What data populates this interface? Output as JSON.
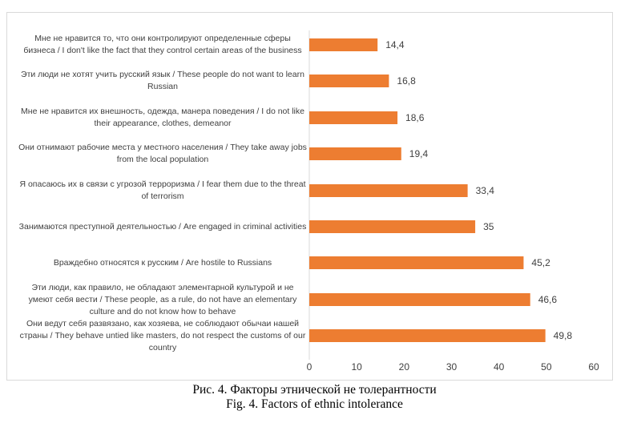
{
  "chart_data": {
    "type": "bar",
    "orientation": "horizontal",
    "categories": [
      "Мне не нравится то, что они контролируют определенные сферы бизнеса / I don't like the fact that they control certain areas of the business",
      "Эти люди не хотят учить русский язык / These people do not want to learn Russian",
      "Мне не нравится их внешность, одежда, манера поведения / I do not like their appearance, clothes, demeanor",
      "Они отнимают рабочие места у местного населения / They take away jobs from the local population",
      "Я опасаюсь их в связи с угрозой терроризма / I fear them due to the threat of terrorism",
      "Занимаются преступной деятельностью / Are engaged in criminal activities",
      "Враждебно относятся к русским / Are hostile to Russians",
      "Эти люди, как правило, не обладают элементарной культурой и не умеют себя вести / These people, as a rule, do not have an elementary culture and do not know how to behave",
      "Они ведут себя развязано, как хозяева, не соблюдают обычаи нашей страны / They behave untied like masters, do not respect the customs of our country"
    ],
    "values": [
      14.4,
      16.8,
      18.6,
      19.4,
      33.4,
      35,
      45.2,
      46.6,
      49.8
    ],
    "value_labels": [
      "14,4",
      "16,8",
      "18,6",
      "19,4",
      "33,4",
      "35",
      "45,2",
      "46,6",
      "49,8"
    ],
    "xlim": [
      0,
      60
    ],
    "xticks": [
      "0",
      "10",
      "20",
      "30",
      "40",
      "50",
      "60"
    ],
    "bar_color": "#ed7d31",
    "grid": false,
    "legend": false
  },
  "caption": {
    "line1": "Рис. 4. Факторы этнической не толерантности",
    "line2": "Fig. 4. Factors of ethnic intolerance"
  }
}
